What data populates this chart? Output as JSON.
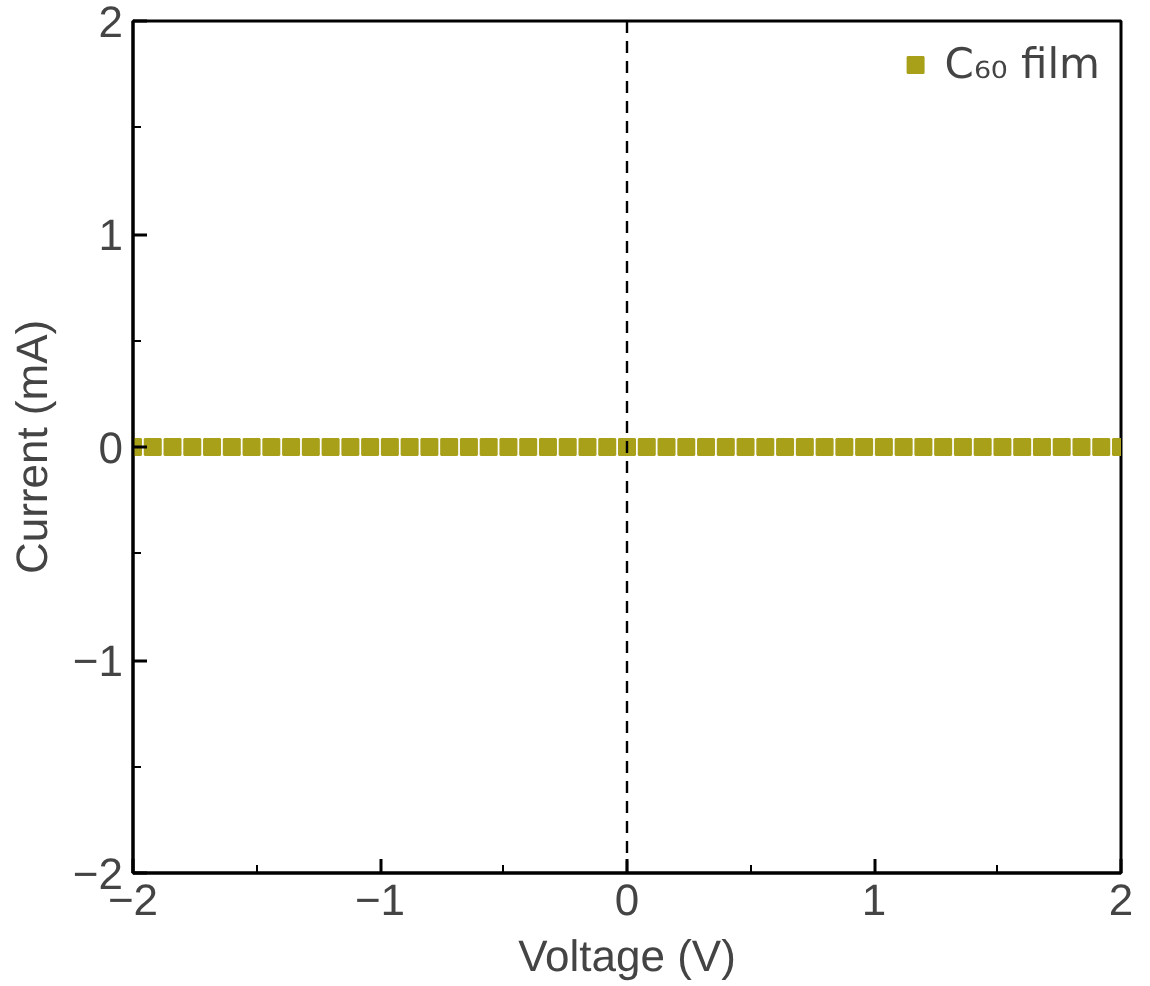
{
  "chart_data": {
    "type": "scatter",
    "xlabel": "Voltage (V)",
    "ylabel": "Current (mA)",
    "x": [
      -2,
      -1.92,
      -1.84,
      -1.76,
      -1.68,
      -1.6,
      -1.52,
      -1.44,
      -1.36,
      -1.28,
      -1.2,
      -1.12,
      -1.04,
      -0.96,
      -0.88,
      -0.8,
      -0.72,
      -0.64,
      -0.56,
      -0.48,
      -0.4,
      -0.32,
      -0.24,
      -0.16,
      -0.08,
      0,
      0.08,
      0.16,
      0.24,
      0.32,
      0.4,
      0.48,
      0.56,
      0.64,
      0.72,
      0.8,
      0.88,
      0.96,
      1.04,
      1.12,
      1.2,
      1.28,
      1.36,
      1.44,
      1.52,
      1.6,
      1.68,
      1.76,
      1.84,
      1.92,
      2
    ],
    "series": [
      {
        "name": "C₆₀ film",
        "color": "#a8a019",
        "values": [
          0,
          0,
          0,
          0,
          0,
          0,
          0,
          0,
          0,
          0,
          0,
          0,
          0,
          0,
          0,
          0,
          0,
          0,
          0,
          0,
          0,
          0,
          0,
          0,
          0,
          0,
          0,
          0,
          0,
          0,
          0,
          0,
          0,
          0,
          0,
          0,
          0,
          0,
          0,
          0,
          0,
          0,
          0,
          0,
          0,
          0,
          0,
          0,
          0,
          0,
          0
        ]
      }
    ],
    "xlim": [
      -2,
      2
    ],
    "ylim": [
      -2,
      2
    ],
    "xticks": [
      {
        "value": -2,
        "label": "−2"
      },
      {
        "value": -1,
        "label": "−1"
      },
      0,
      1,
      2
    ],
    "yticks": [
      {
        "value": -2,
        "label": "−2"
      },
      {
        "value": -1,
        "label": "−1"
      },
      0,
      1,
      2
    ],
    "ref_lines": [
      {
        "axis": "x",
        "value": 0,
        "label": null,
        "color": "#000000",
        "line_style": "dashed"
      }
    ],
    "marker": "square",
    "legend": "top right",
    "grid": false
  }
}
